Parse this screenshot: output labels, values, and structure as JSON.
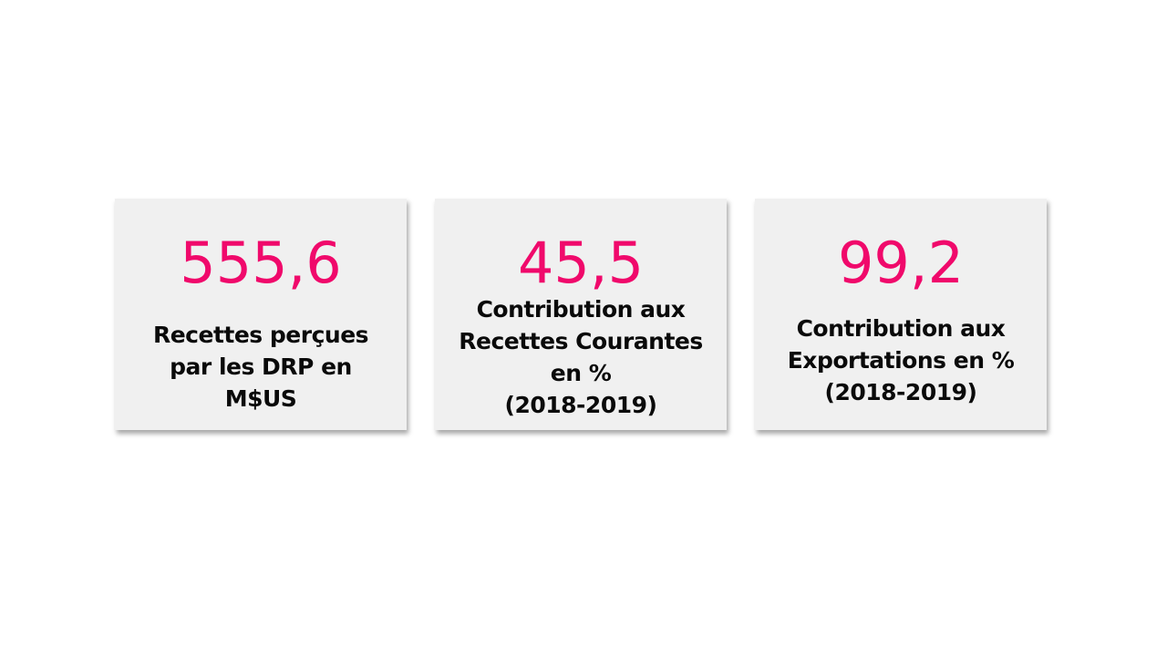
{
  "colors": {
    "value": "#f0096b",
    "label": "#0a0a0a",
    "card_background": "#f0f0f0"
  },
  "cards": [
    {
      "value": "555,6",
      "label": "Recettes perçues\npar les DRP en\nM$US"
    },
    {
      "value": "45,5",
      "label": "Contribution aux\nRecettes Courantes\nen %\n(2018-2019)"
    },
    {
      "value": "99,2",
      "label": "Contribution aux\nExportations en %\n(2018-2019)"
    }
  ]
}
